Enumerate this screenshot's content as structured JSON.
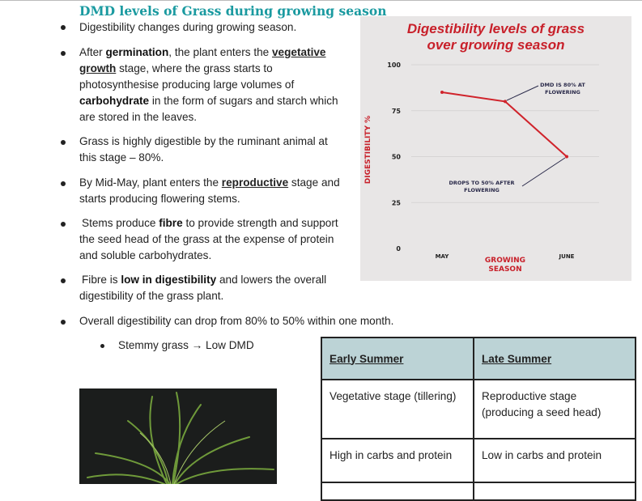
{
  "heading": "DMD levels of Grass during growing season",
  "bullets": {
    "b1": "Digestibility changes during growing season.",
    "b2a": "After ",
    "b2b": "germination",
    "b2c": ", the plant enters the ",
    "b2d": "vegetative growth",
    "b2e": " stage, where the grass starts to photosynthesise producing large volumes of ",
    "b2f": "carbohydrate",
    "b2g": " in the form of sugars and starch which are stored in the leaves.",
    "b3": "Grass is highly digestible by the ruminant animal at this stage – 80%.",
    "b4a": "By Mid-May, plant enters the ",
    "b4b": "reproductive",
    "b4c": " stage and starts producing flowering stems.",
    "b5a": "Stems produce ",
    "b5b": "fibre",
    "b5c": " to provide strength and support the seed head of the grass at the expense of protein and soluble carbohydrates.",
    "b6a": "Fibre is ",
    "b6b": "low in digestibility",
    "b6c": " and lowers the overall digestibility of the grass plant.",
    "b7": "Overall digestibility can drop from 80% to 50% within one month.",
    "sub1": "Stemmy grass → Low DMD"
  },
  "table": {
    "headers": [
      "Early Summer",
      "Late Summer"
    ],
    "rows": [
      [
        "Vegetative stage (tillering)",
        "Reproductive stage (producing a seed head)"
      ],
      [
        "High in carbs and protein",
        "Low in carbs and protein"
      ]
    ]
  },
  "chart_data": {
    "type": "line",
    "title": "Digestibility levels of grass over growing season",
    "xlabel": "GROWING SEASON",
    "ylabel": "DIGESTIBILITY %",
    "categories": [
      "MAY",
      "",
      "JUNE"
    ],
    "x": [
      0,
      1,
      2
    ],
    "values": [
      85,
      80,
      50
    ],
    "ylim": [
      0,
      100
    ],
    "yticks": [
      0,
      25,
      50,
      75,
      100
    ],
    "annotations": [
      {
        "text": "DMD IS 80% AT FLOWERING",
        "x": 1,
        "y": 80
      },
      {
        "text": "DROPS TO 50% AFTER FLOWERING",
        "x": 2,
        "y": 50
      }
    ],
    "colors": {
      "line": "#d0232b",
      "annotation": "#2a2a4a",
      "background": "#e8e6e6"
    }
  }
}
